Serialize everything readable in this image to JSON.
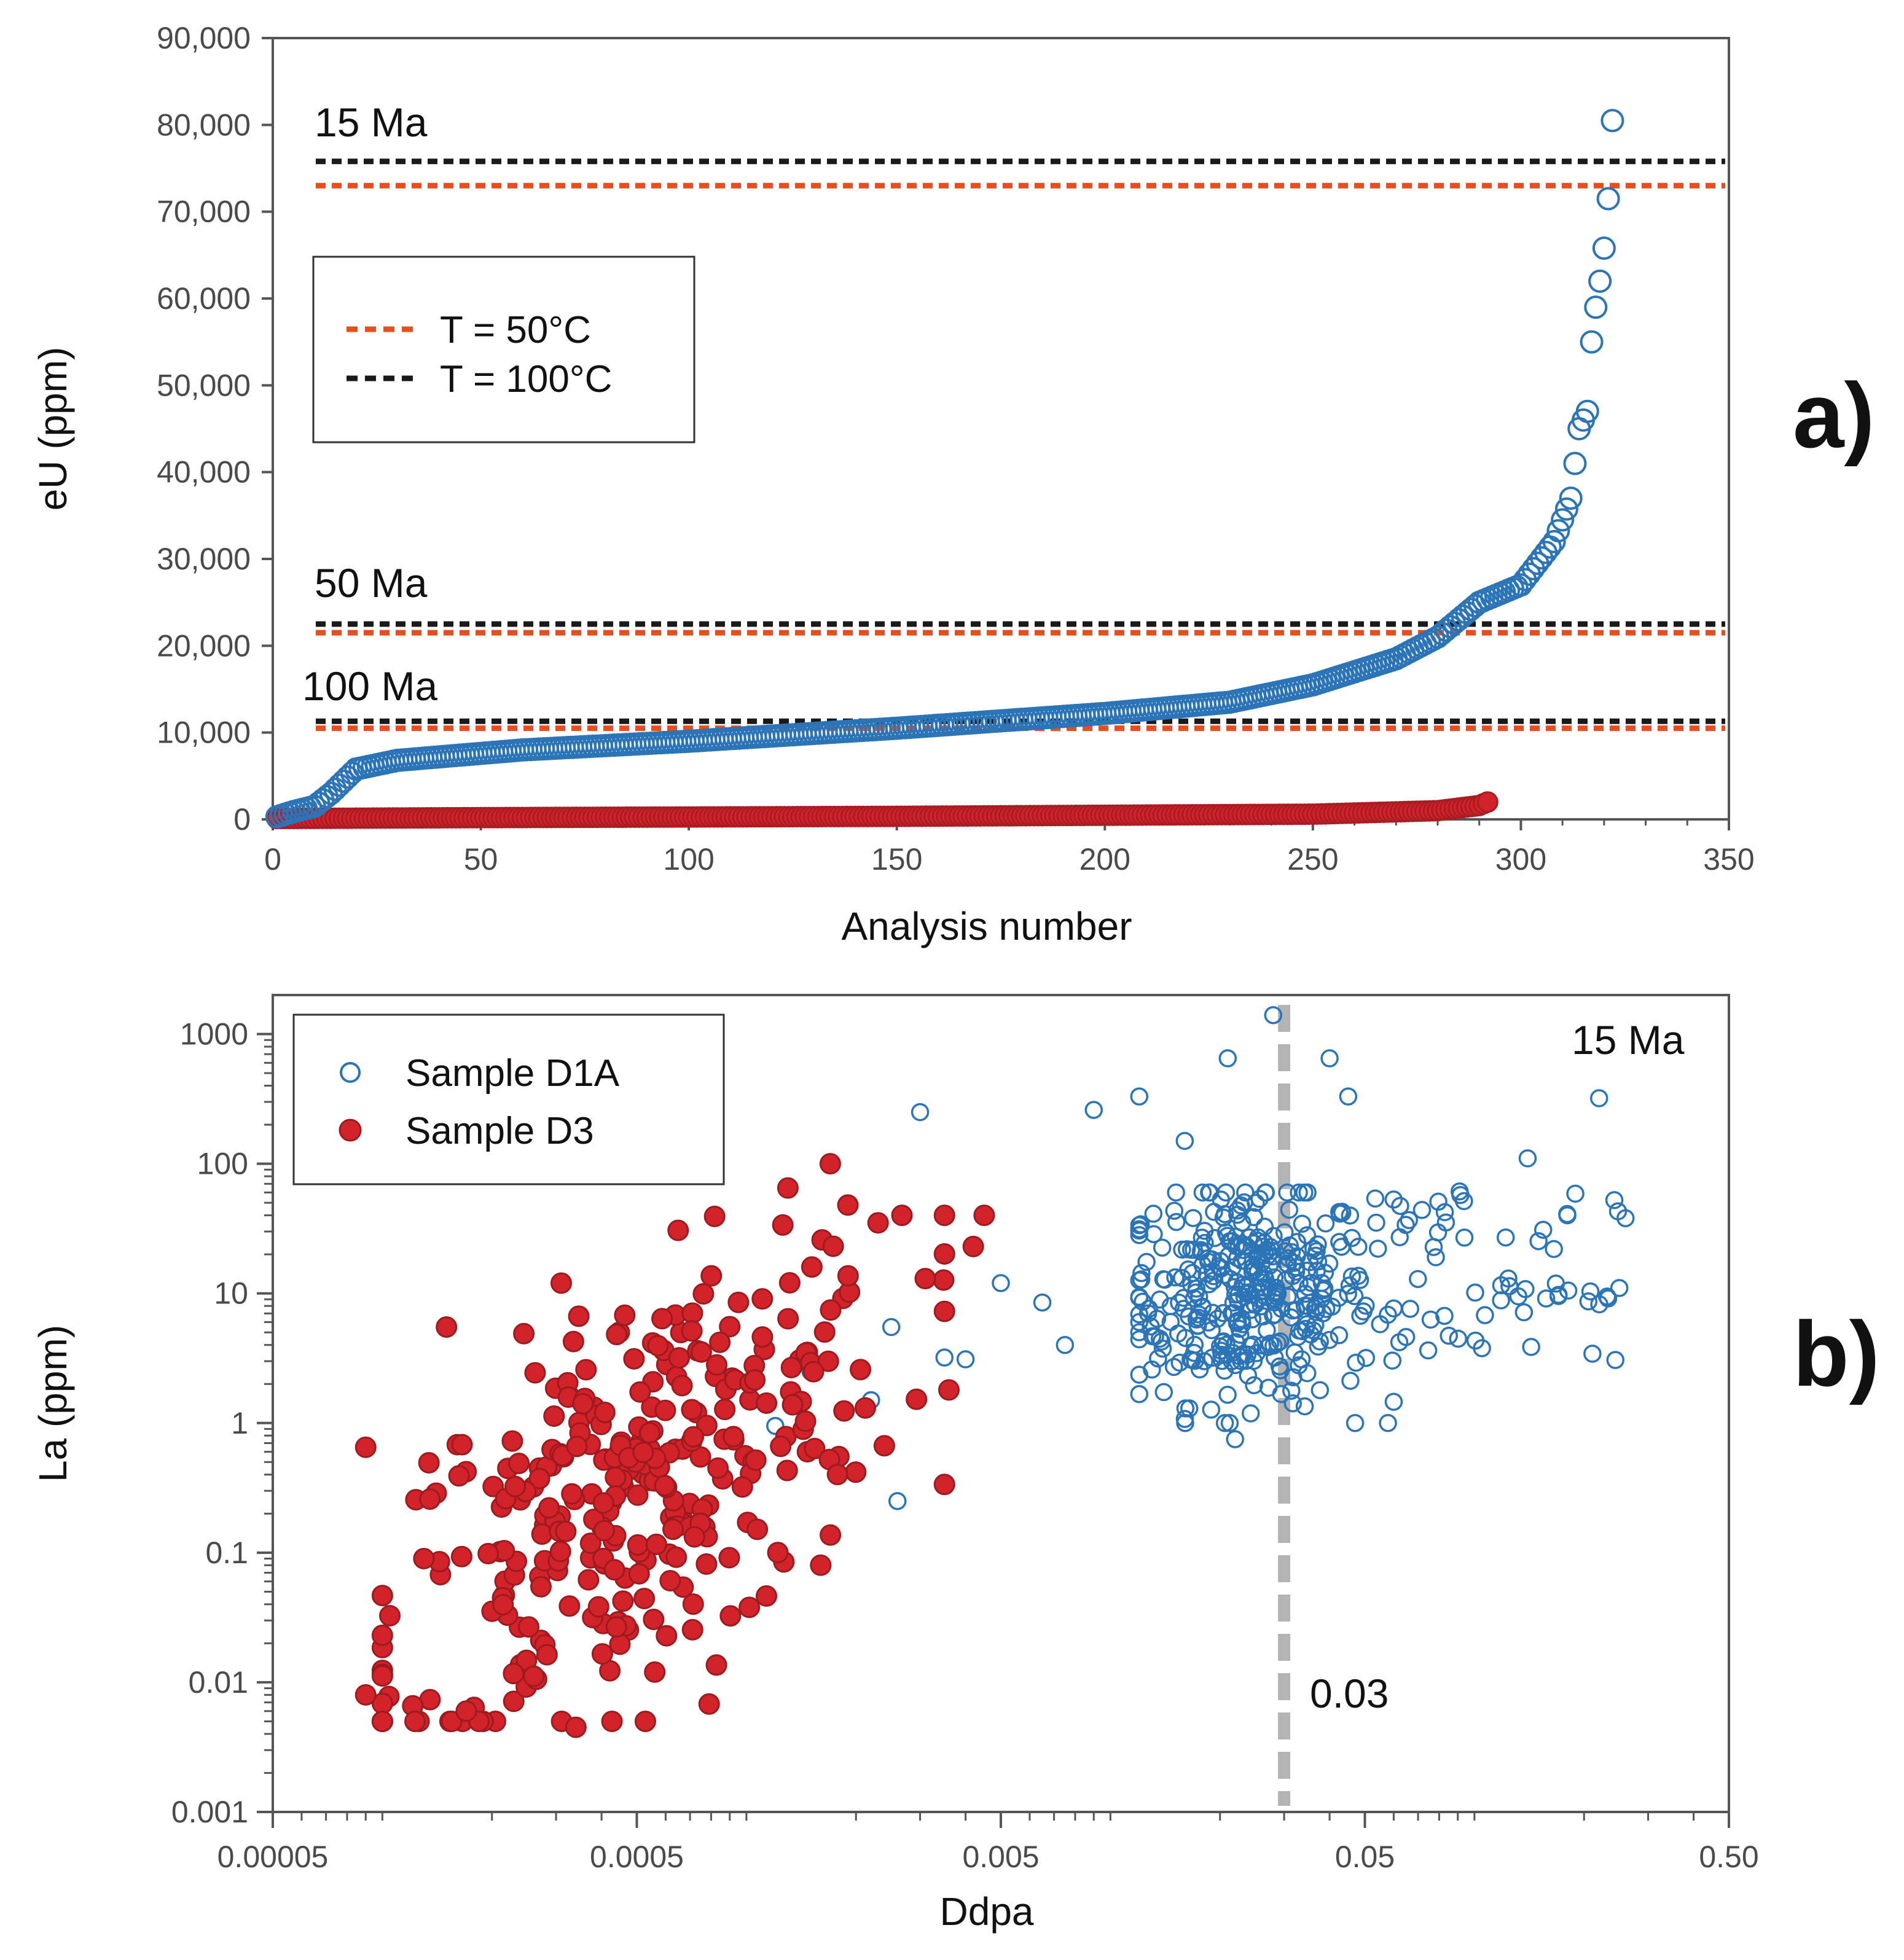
{
  "panel_labels": {
    "a": "a)",
    "b": "b)"
  },
  "colors": {
    "blue": "#2b74b8",
    "red": "#d2232a",
    "orange_line": "#e84e1b",
    "black_line": "#1a1a1a",
    "gray_line": "#b4b4b4"
  },
  "chart_data": [
    {
      "type": "scatter",
      "id": "a",
      "xlabel": "Analysis number",
      "ylabel": "eU (ppm)",
      "xlim": [
        0,
        350
      ],
      "ylim": [
        0,
        90000
      ],
      "x_ticks": [
        0,
        50,
        100,
        150,
        200,
        250,
        300,
        350
      ],
      "y_ticks": [
        0,
        10000,
        20000,
        30000,
        40000,
        50000,
        60000,
        70000,
        80000,
        90000
      ],
      "x_tick_labels": [
        "0",
        "50",
        "100",
        "150",
        "200",
        "250",
        "300",
        "350"
      ],
      "y_tick_labels": [
        "0",
        "10,000",
        "20,000",
        "30,000",
        "40,000",
        "50,000",
        "60,000",
        "70,000",
        "80,000",
        "90,000"
      ],
      "legend": {
        "position": "upper-left",
        "entries": [
          {
            "label": "T = 50°C",
            "color": "#e84e1b"
          },
          {
            "label": "T = 100°C",
            "color": "#1a1a1a"
          }
        ]
      },
      "reference_lines": [
        {
          "age": "15 Ma",
          "t50": 73000,
          "t100": 75800
        },
        {
          "age": "50 Ma",
          "t50": 21500,
          "t100": 22500
        },
        {
          "age": "100 Ma",
          "t50": 10500,
          "t100": 11300
        }
      ],
      "series": [
        {
          "marker": "open-circle",
          "color": "#2b74b8",
          "count": 322,
          "profile": [
            [
              1,
              300
            ],
            [
              5,
              900
            ],
            [
              10,
              1500
            ],
            [
              14,
              3000
            ],
            [
              20,
              5800
            ],
            [
              30,
              6800
            ],
            [
              60,
              8000
            ],
            [
              100,
              9000
            ],
            [
              150,
              10500
            ],
            [
              200,
              12200
            ],
            [
              230,
              13500
            ],
            [
              250,
              15500
            ],
            [
              270,
              18500
            ],
            [
              280,
              21000
            ],
            [
              290,
              25000
            ],
            [
              300,
              27000
            ],
            [
              308,
              32000
            ],
            [
              312,
              37000
            ],
            [
              314,
              45000
            ],
            [
              316,
              47000
            ],
            [
              317,
              55000
            ],
            [
              318,
              59000
            ],
            [
              319,
              62000
            ],
            [
              320,
              65800
            ],
            [
              321,
              71500
            ],
            [
              322,
              80500
            ]
          ]
        },
        {
          "marker": "filled-circle",
          "color": "#d2232a",
          "count": 292,
          "profile": [
            [
              1,
              100
            ],
            [
              50,
              200
            ],
            [
              150,
              350
            ],
            [
              250,
              600
            ],
            [
              280,
              1000
            ],
            [
              290,
              1600
            ],
            [
              292,
              2000
            ]
          ]
        }
      ]
    },
    {
      "type": "scatter",
      "id": "b",
      "xlabel": "Ddpa",
      "ylabel": "La (ppm)",
      "x_scale": "log",
      "y_scale": "log",
      "xlim": [
        5e-05,
        0.5
      ],
      "ylim": [
        0.001,
        2000
      ],
      "x_tick_values": [
        5e-05,
        0.0005,
        0.005,
        0.05,
        0.5
      ],
      "x_tick_labels": [
        "0.00005",
        "0.0005",
        "0.005",
        "0.05",
        "0.50"
      ],
      "y_tick_values": [
        0.001,
        0.01,
        0.1,
        1,
        10,
        100,
        1000
      ],
      "y_tick_labels": [
        "0.001",
        "0.01",
        "0.1",
        "1",
        "10",
        "100",
        "1000"
      ],
      "annotation": "15 Ma",
      "threshold": {
        "x": 0.03,
        "label": "0.03"
      },
      "legend": {
        "position": "upper-left",
        "entries": [
          {
            "label": "Sample D1A",
            "marker": "open-circle",
            "color": "#2b74b8"
          },
          {
            "label": "Sample D3",
            "marker": "filled-circle",
            "color": "#d2232a"
          }
        ]
      },
      "series": [
        {
          "name": "Sample D1A",
          "marker": "open-circle",
          "color": "#2b74b8",
          "highlighted_points": [
            [
              0.028,
              1400
            ],
            [
              0.021,
              650
            ],
            [
              0.04,
              650
            ],
            [
              0.012,
              330
            ],
            [
              0.003,
              250
            ],
            [
              0.009,
              260
            ],
            [
              0.045,
              330
            ],
            [
              0.22,
              320
            ],
            [
              0.016,
              150
            ],
            [
              0.14,
              110
            ],
            [
              0.005,
              12
            ],
            [
              0.0065,
              8.5
            ],
            [
              0.0025,
              5.5
            ],
            [
              0.0075,
              4
            ],
            [
              0.047,
              1
            ],
            [
              0.022,
              0.75
            ],
            [
              0.0026,
              0.25
            ],
            [
              0.0012,
              0.95
            ],
            [
              0.0015,
              2.5
            ],
            [
              0.0035,
              3.2
            ],
            [
              0.004,
              3.1
            ],
            [
              0.0022,
              1.5
            ],
            [
              0.26,
              38
            ],
            [
              0.18,
              40
            ],
            [
              0.25,
              11
            ]
          ],
          "cluster": {
            "x_range": [
              0.012,
              0.06
            ],
            "y_range": [
              1,
              60
            ],
            "center": [
              0.024,
              10
            ],
            "count": 360
          },
          "extra_cluster": {
            "x_range": [
              0.05,
              0.25
            ],
            "y_range": [
              3,
              80
            ],
            "count": 60
          }
        },
        {
          "name": "Sample D3",
          "marker": "filled-circle",
          "color": "#d2232a",
          "highlighted_points": [
            [
              0.0017,
              100
            ],
            [
              0.0013,
              65
            ],
            [
              0.0019,
              48
            ],
            [
              0.0045,
              40
            ],
            [
              0.0023,
              35
            ],
            [
              0.0042,
              23
            ],
            [
              0.00031,
              12
            ],
            [
              0.0031,
              13
            ],
            [
              0.00015,
              5.5
            ],
            [
              9e-05,
              0.65
            ],
            [
              0.00013,
              0.09
            ],
            [
              9e-05,
              0.008
            ],
            [
              0.00017,
              0.006
            ],
            [
              0.00034,
              0.0045
            ],
            [
              0.00079,
              0.0068
            ],
            [
              0.0016,
              0.08
            ],
            [
              0.00056,
              0.012
            ],
            [
              0.0036,
              1.8
            ]
          ],
          "cluster": {
            "x_range": [
              0.0001,
              0.0035
            ],
            "y_range": [
              0.005,
              40
            ],
            "center": [
              0.0005,
              0.3
            ],
            "count": 320
          }
        }
      ]
    }
  ]
}
